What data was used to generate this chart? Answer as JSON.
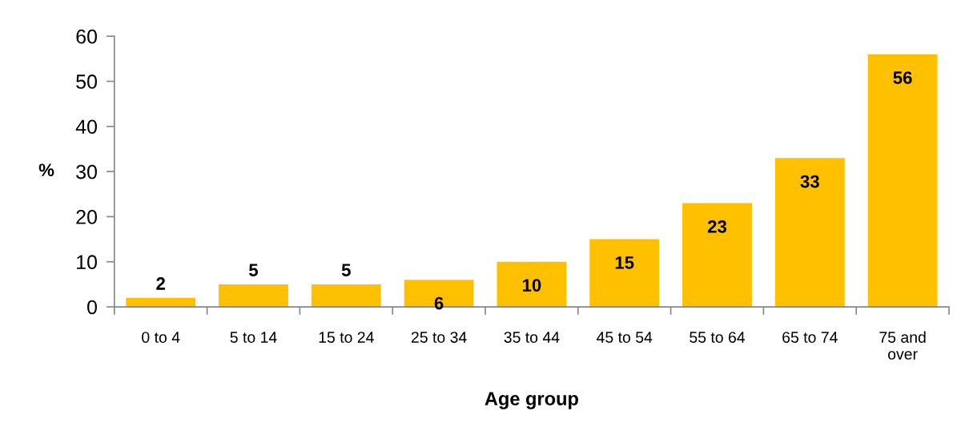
{
  "chart_data": {
    "type": "bar",
    "xlabel": "Age group",
    "ylabel": "%",
    "categories": [
      "0 to 4",
      "5 to 14",
      "15 to 24",
      "25 to 34",
      "35 to 44",
      "45 to 54",
      "55 to 64",
      "65 to 74",
      "75 and\nover"
    ],
    "values": [
      2,
      5,
      5,
      6,
      10,
      15,
      23,
      33,
      56
    ],
    "color": "#ffc000",
    "ylim": [
      0,
      60
    ],
    "yticks": [
      0,
      10,
      20,
      30,
      40,
      50,
      60
    ],
    "grid": false,
    "legend": false,
    "data_labels": true
  }
}
